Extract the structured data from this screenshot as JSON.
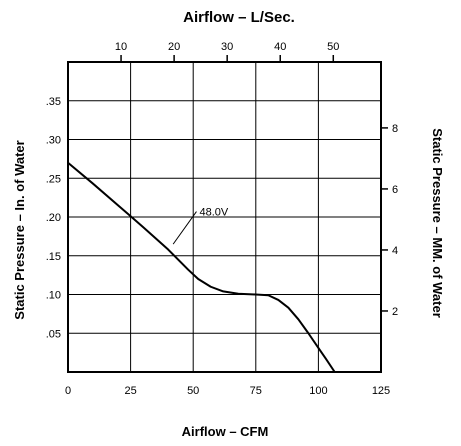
{
  "chart_data": {
    "type": "line",
    "title_top": "Airflow  –  L/Sec.",
    "xlabel": "Airflow  –  CFM",
    "ylabel_left": "Static Pressure  –  In. of Water",
    "ylabel_right": "Static Pressure  –  MM. of Water",
    "xlim": [
      0,
      125
    ],
    "ylim": [
      0,
      0.4
    ],
    "x_ticks": [
      0,
      25,
      50,
      75,
      100,
      125
    ],
    "x_tick_labels": [
      "0",
      "25",
      "50",
      "75",
      "100",
      "125"
    ],
    "y_ticks": [
      0.05,
      0.1,
      0.15,
      0.2,
      0.25,
      0.3,
      0.35
    ],
    "y_tick_labels": [
      ".05",
      ".10",
      ".15",
      ".20",
      ".25",
      ".30",
      ".35"
    ],
    "top_axis_ticks": [
      10,
      20,
      30,
      40,
      50
    ],
    "top_axis_tick_labels": [
      "10",
      "20",
      "30",
      "40",
      "50"
    ],
    "right_axis_ticks": [
      2,
      4,
      6,
      8
    ],
    "right_axis_tick_labels": [
      "2",
      "4",
      "6",
      "8"
    ],
    "grid": true,
    "series": [
      {
        "name": "48.0V",
        "x": [
          0,
          10,
          20,
          30,
          40,
          48,
          52,
          57,
          62,
          68,
          75,
          80,
          84,
          88,
          92,
          96,
          100,
          103,
          106.5
        ],
        "y": [
          0.27,
          0.243,
          0.215,
          0.187,
          0.158,
          0.132,
          0.12,
          0.11,
          0.104,
          0.101,
          0.1,
          0.099,
          0.093,
          0.083,
          0.068,
          0.05,
          0.031,
          0.017,
          0.0
        ]
      }
    ],
    "annotations": [
      {
        "text": "48.0V",
        "x": 42,
        "y": 0.165,
        "label_x": 52.5,
        "label_y": 0.207
      }
    ],
    "line_color": "#000000"
  }
}
